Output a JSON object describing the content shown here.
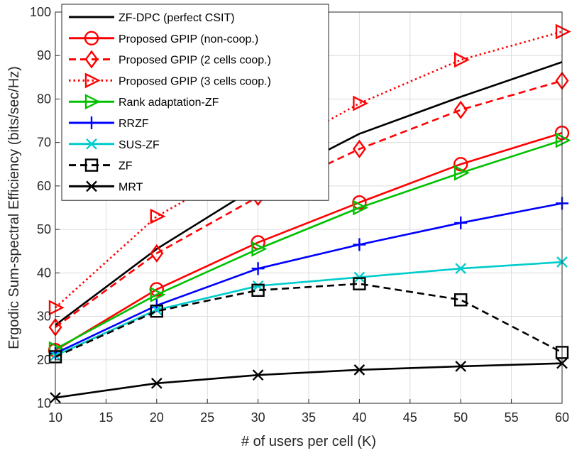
{
  "chart_data": {
    "type": "line",
    "title": "",
    "xlabel": "# of users per cell (K)",
    "ylabel": "Ergodic Sum-spectral Efficiency (bits/sec/Hz)",
    "xlim": [
      10,
      60
    ],
    "ylim": [
      10,
      100
    ],
    "xticks": [
      10,
      15,
      20,
      25,
      30,
      35,
      40,
      45,
      50,
      55,
      60
    ],
    "yticks": [
      10,
      20,
      30,
      40,
      50,
      60,
      70,
      80,
      90,
      100
    ],
    "grid": true,
    "legend_position": "top-left",
    "x": [
      10,
      20,
      30,
      40,
      50,
      60
    ],
    "series": [
      {
        "name": "ZF-DPC (perfect CSIT)",
        "values": [
          28,
          45.5,
          60,
          72,
          80.5,
          88.5
        ],
        "color": "#000000",
        "dash": "solid",
        "marker": "none"
      },
      {
        "name": "Proposed GPIP (non-coop.)",
        "values": [
          22.2,
          36.2,
          47,
          56.2,
          65,
          72.2
        ],
        "color": "#ff0000",
        "dash": "solid",
        "marker": "circle"
      },
      {
        "name": "Proposed GPIP (2 cells coop.)",
        "values": [
          27.5,
          44.5,
          57.5,
          68.5,
          77.5,
          84.2
        ],
        "color": "#ff0000",
        "dash": "dashed",
        "marker": "diamond"
      },
      {
        "name": "Proposed GPIP (3 cells coop.)",
        "values": [
          32,
          53,
          66,
          79,
          89,
          95.5
        ],
        "color": "#ff0000",
        "dash": "dotted",
        "marker": "triangle-right"
      },
      {
        "name": "Rank adaptation-ZF",
        "values": [
          22.5,
          35,
          45.5,
          55,
          63,
          70.5
        ],
        "color": "#00c000",
        "dash": "solid",
        "marker": "triangle-right"
      },
      {
        "name": "RRZF",
        "values": [
          21.5,
          32.5,
          41,
          46.5,
          51.5,
          56
        ],
        "color": "#0000ff",
        "dash": "solid",
        "marker": "plus"
      },
      {
        "name": "SUS-ZF",
        "values": [
          21,
          31.5,
          37,
          39,
          41,
          42.5
        ],
        "color": "#00cccc",
        "dash": "solid",
        "marker": "x"
      },
      {
        "name": "ZF",
        "values": [
          20.7,
          31.2,
          36,
          37.5,
          33.8,
          21.7
        ],
        "color": "#000000",
        "dash": "dashed",
        "marker": "square"
      },
      {
        "name": "MRT",
        "values": [
          11.3,
          14.6,
          16.5,
          17.7,
          18.5,
          19.2
        ],
        "color": "#000000",
        "dash": "solid",
        "marker": "x"
      }
    ]
  }
}
